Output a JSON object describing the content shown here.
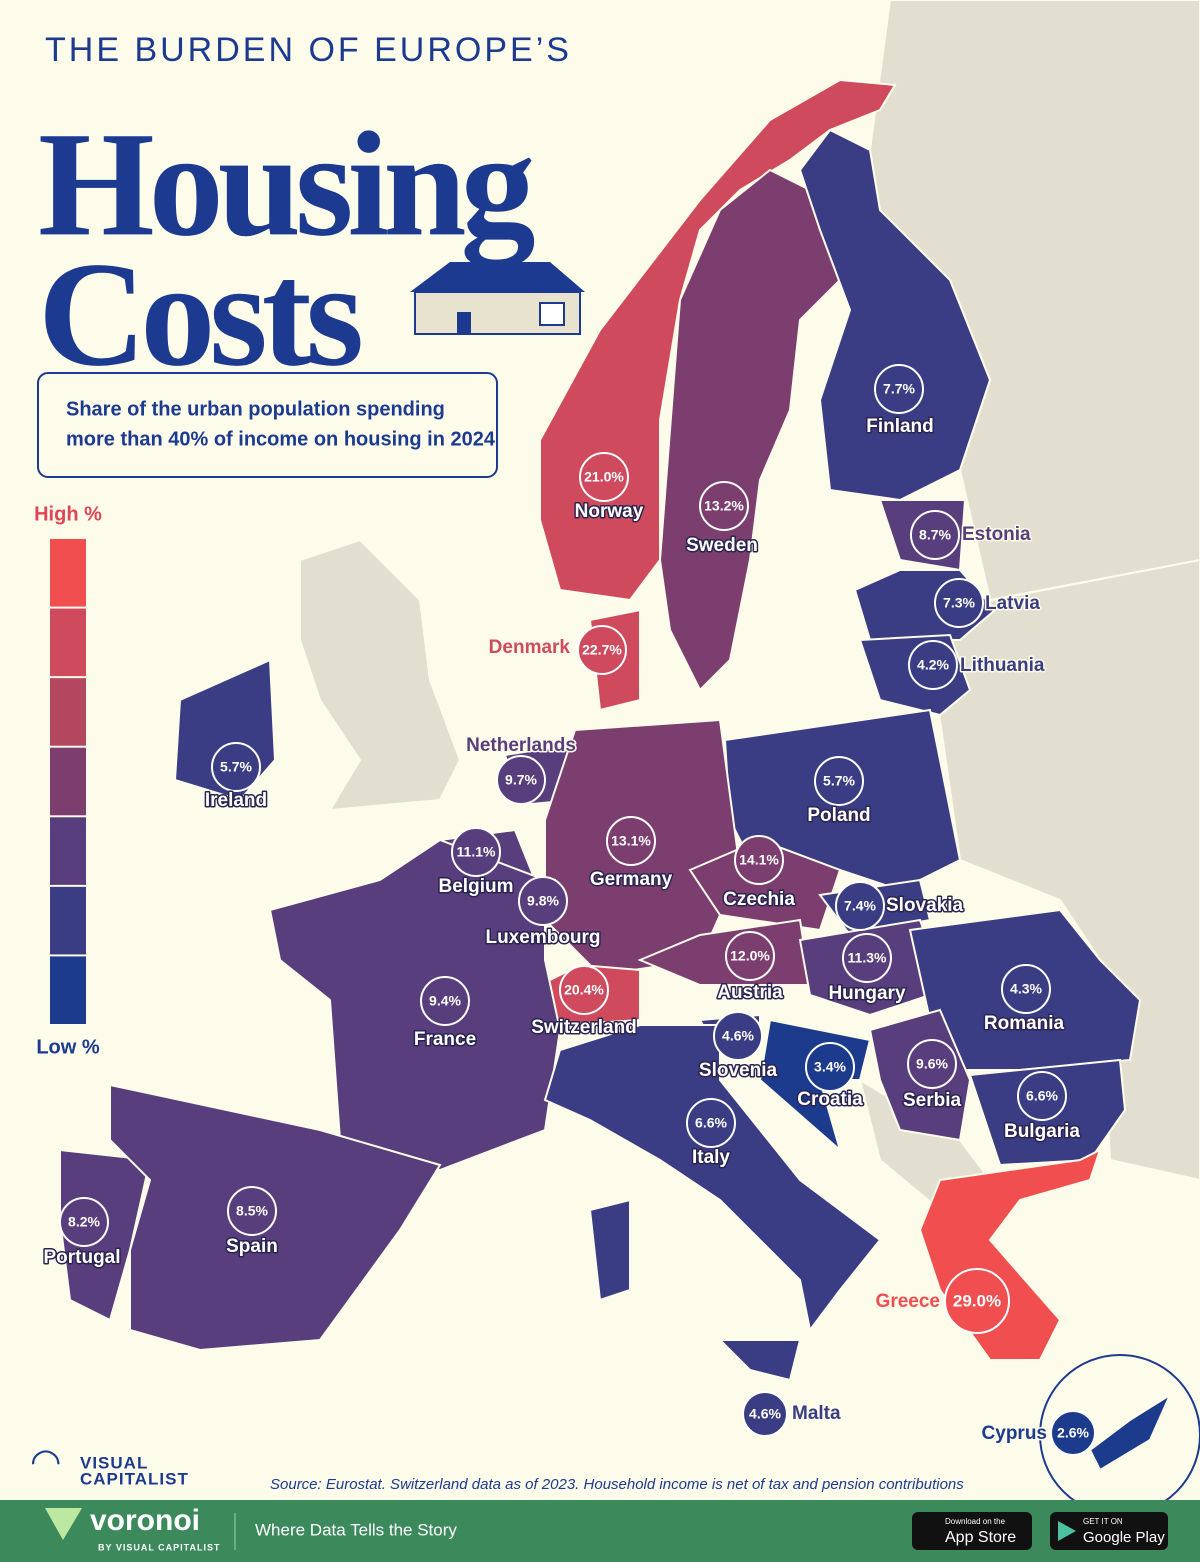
{
  "header": {
    "kicker": "THE BURDEN OF EUROPE’S",
    "title_lines": [
      "Housing",
      "Costs"
    ]
  },
  "subtitle_lines": [
    "Share of the urban population spending",
    "more than 40% of income on housing in 2024"
  ],
  "legend": {
    "high": "High %",
    "low": "Low %",
    "colors": [
      "#f04e4f",
      "#d04a5e",
      "#b2475f",
      "#7c3e6e",
      "#583e7c",
      "#3a3d83",
      "#1d3b8c"
    ]
  },
  "countries": [
    {
      "name": "Norway",
      "value": "21.0%",
      "color": "#d04a5e"
    },
    {
      "name": "Sweden",
      "value": "13.2%",
      "color": "#7c3e6e"
    },
    {
      "name": "Finland",
      "value": "7.7%",
      "color": "#3a3d83"
    },
    {
      "name": "Estonia",
      "value": "8.7%",
      "color": "#583e7c"
    },
    {
      "name": "Latvia",
      "value": "7.3%",
      "color": "#3a3d83"
    },
    {
      "name": "Lithuania",
      "value": "4.2%",
      "color": "#3a3d83"
    },
    {
      "name": "Denmark",
      "value": "22.7%",
      "color": "#d04a5e"
    },
    {
      "name": "Ireland",
      "value": "5.7%",
      "color": "#3a3d83"
    },
    {
      "name": "Netherlands",
      "value": "9.7%",
      "color": "#583e7c"
    },
    {
      "name": "Poland",
      "value": "5.7%",
      "color": "#3a3d83"
    },
    {
      "name": "Belgium",
      "value": "11.1%",
      "color": "#583e7c"
    },
    {
      "name": "Germany",
      "value": "13.1%",
      "color": "#7c3e6e"
    },
    {
      "name": "Czechia",
      "value": "14.1%",
      "color": "#7c3e6e"
    },
    {
      "name": "Luxembourg",
      "value": "9.8%",
      "color": "#583e7c"
    },
    {
      "name": "Slovakia",
      "value": "7.4%",
      "color": "#3a3d83"
    },
    {
      "name": "Austria",
      "value": "12.0%",
      "color": "#7c3e6e"
    },
    {
      "name": "Hungary",
      "value": "11.3%",
      "color": "#583e7c"
    },
    {
      "name": "Switzerland",
      "value": "20.4%",
      "color": "#d04a5e"
    },
    {
      "name": "France",
      "value": "9.4%",
      "color": "#583e7c"
    },
    {
      "name": "Romania",
      "value": "4.3%",
      "color": "#3a3d83"
    },
    {
      "name": "Slovenia",
      "value": "4.6%",
      "color": "#3a3d83"
    },
    {
      "name": "Croatia",
      "value": "3.4%",
      "color": "#1d3b8c"
    },
    {
      "name": "Serbia",
      "value": "9.6%",
      "color": "#583e7c"
    },
    {
      "name": "Bulgaria",
      "value": "6.6%",
      "color": "#3a3d83"
    },
    {
      "name": "Italy",
      "value": "6.6%",
      "color": "#3a3d83"
    },
    {
      "name": "Portugal",
      "value": "8.2%",
      "color": "#583e7c"
    },
    {
      "name": "Spain",
      "value": "8.5%",
      "color": "#583e7c"
    },
    {
      "name": "Greece",
      "value": "29.0%",
      "color": "#f04e4f"
    },
    {
      "name": "Malta",
      "value": "4.6%",
      "color": "#3a3d83"
    },
    {
      "name": "Cyprus",
      "value": "2.6%",
      "color": "#1d3b8c"
    }
  ],
  "source": "Source: Eurostat. Switzerland data as of 2023. Household income is net of tax and pension contributions",
  "logo": {
    "line1": "VISUAL",
    "line2": "CAPITALIST"
  },
  "footer": {
    "brand": "voronoi",
    "brand_sub": "BY VISUAL CAPITALIST",
    "tagline": "Where Data Tells the Story",
    "app_store": {
      "small": "Download on the",
      "big": "App Store"
    },
    "google_play": {
      "small": "GET IT ON",
      "big": "Google Play"
    }
  }
}
